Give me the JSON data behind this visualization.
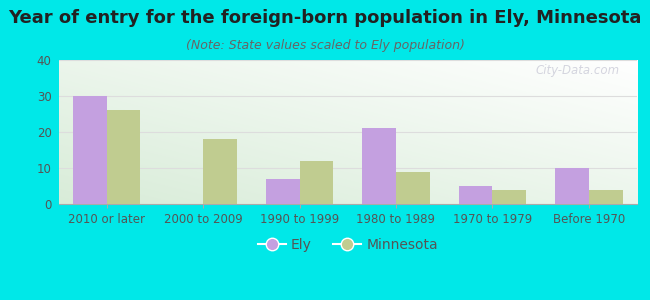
{
  "title": "Year of entry for the foreign-born population in Ely, Minnesota",
  "subtitle": "(Note: State values scaled to Ely population)",
  "categories": [
    "2010 or later",
    "2000 to 2009",
    "1990 to 1999",
    "1980 to 1989",
    "1970 to 1979",
    "Before 1970"
  ],
  "ely_values": [
    30,
    0,
    7,
    21,
    5,
    10
  ],
  "minnesota_values": [
    26,
    18,
    12,
    9,
    4,
    4
  ],
  "ely_color": "#c4a0e0",
  "minnesota_color": "#c0cc90",
  "background_outer": "#00e8e8",
  "background_inner_top": "#ffffff",
  "background_inner_bottom": "#d8ecd8",
  "ylim": [
    0,
    40
  ],
  "yticks": [
    0,
    10,
    20,
    30,
    40
  ],
  "bar_width": 0.35,
  "watermark": "City-Data.com",
  "title_fontsize": 13,
  "subtitle_fontsize": 9,
  "tick_fontsize": 8.5,
  "legend_fontsize": 10
}
